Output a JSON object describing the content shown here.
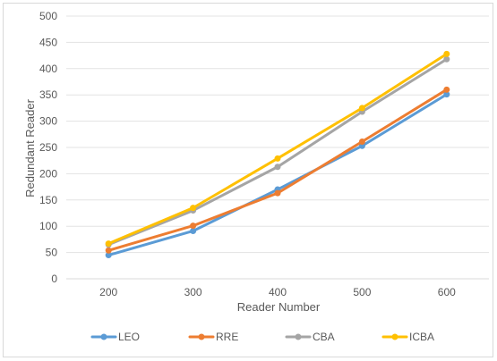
{
  "chart_data": {
    "type": "line",
    "title": "",
    "xlabel": "Reader Number",
    "ylabel": "Redundant Reader",
    "categories": [
      "200",
      "300",
      "400",
      "500",
      "600"
    ],
    "ylim": [
      0,
      500
    ],
    "yticks": [
      "0",
      "50",
      "100",
      "150",
      "200",
      "250",
      "300",
      "350",
      "400",
      "450",
      "500"
    ],
    "grid": "horizontal",
    "legend_position": "bottom",
    "series": [
      {
        "name": "LEO",
        "color": "#5b9bd5",
        "values": [
          45,
          91,
          170,
          253,
          351
        ]
      },
      {
        "name": "RRE",
        "color": "#ed7d31",
        "values": [
          54,
          101,
          163,
          261,
          360
        ]
      },
      {
        "name": "CBA",
        "color": "#a5a5a5",
        "values": [
          65,
          130,
          213,
          318,
          418
        ]
      },
      {
        "name": "ICBA",
        "color": "#ffc000",
        "values": [
          67,
          135,
          229,
          325,
          428
        ]
      }
    ]
  }
}
